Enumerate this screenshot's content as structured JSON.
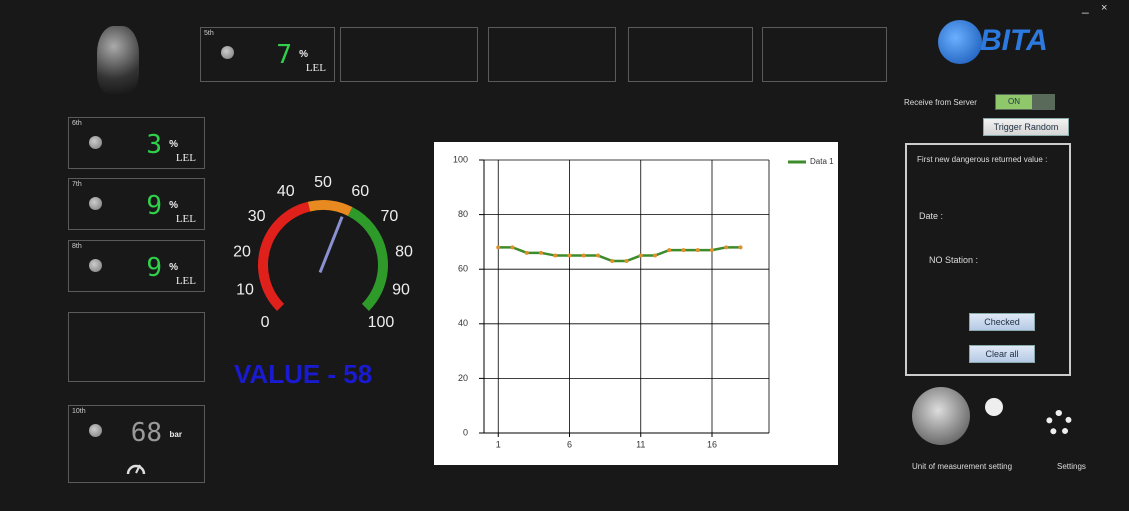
{
  "window": {
    "minimize": "_",
    "close": "×"
  },
  "logo": "BITA",
  "top_sensor": {
    "label": "5th",
    "value": "7",
    "unit": "%",
    "sub": "LEL"
  },
  "sensors": [
    {
      "label": "6th",
      "value": "3",
      "unit": "%",
      "sub": "LEL"
    },
    {
      "label": "7th",
      "value": "9",
      "unit": "%",
      "sub": "LEL"
    },
    {
      "label": "8th",
      "value": "9",
      "unit": "%",
      "sub": "LEL"
    },
    {
      "label": "10th",
      "value": "68",
      "unit": "bar"
    }
  ],
  "gauge": {
    "ticks": [
      0,
      10,
      20,
      30,
      40,
      50,
      60,
      70,
      80,
      90,
      100
    ],
    "value": 58,
    "readout": "VALUE - 58"
  },
  "chart_data": {
    "type": "line",
    "x": [
      1,
      2,
      3,
      4,
      5,
      6,
      7,
      8,
      9,
      10,
      11,
      12,
      13,
      14,
      15,
      16,
      17,
      18
    ],
    "series": [
      {
        "name": "Data 1",
        "color": "#3d8b2a",
        "marker_color": "#e0902a",
        "values": [
          68,
          68,
          66,
          66,
          65,
          65,
          65,
          65,
          63,
          63,
          65,
          65,
          67,
          67,
          67,
          67,
          68,
          68
        ]
      }
    ],
    "xlim": [
      0,
      20
    ],
    "ylim": [
      0,
      100
    ],
    "xticks": [
      1,
      6,
      11,
      16
    ],
    "yticks": [
      0,
      20,
      40,
      60,
      80,
      100
    ],
    "grid": true,
    "legend": "top-right"
  },
  "server": {
    "label": "Receive from Server",
    "toggle": "ON",
    "button": "Trigger Random"
  },
  "alert_panel": {
    "title": "First new dangerous returned value :",
    "date": "Date :",
    "station": "NO Station :",
    "checked": "Checked",
    "clear": "Clear all"
  },
  "settings": {
    "units": "Unit of measurement setting",
    "settings": "Settings"
  }
}
